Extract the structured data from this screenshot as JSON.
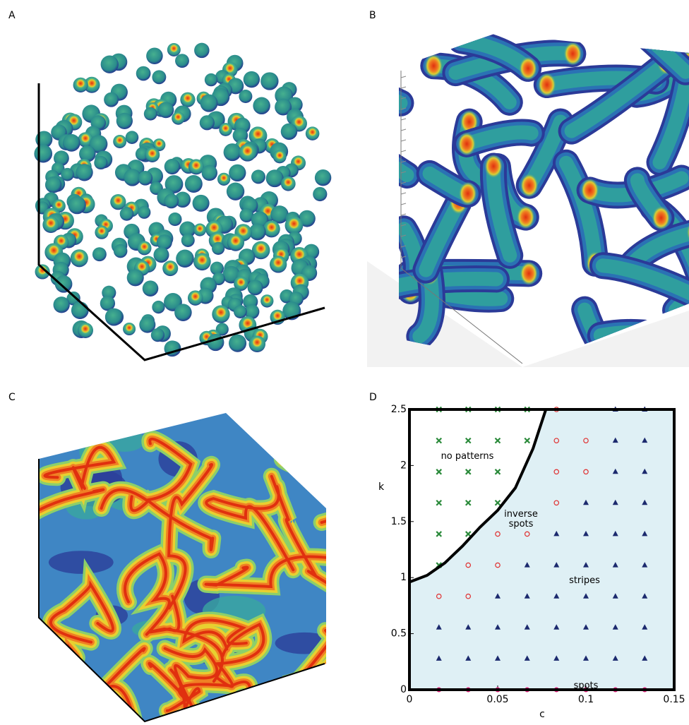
{
  "panel_labels": [
    "A",
    "B",
    "C",
    "D"
  ],
  "chart_data": {
    "type": "scatter",
    "xlabel": "c",
    "ylabel": "k",
    "xlim": [
      0,
      0.15
    ],
    "ylim": [
      0,
      2.5
    ],
    "xticks": [
      0,
      0.05,
      0.1,
      0.15
    ],
    "yticks": [
      0,
      0.5,
      1,
      1.5,
      2,
      2.5
    ],
    "region_color": "#dff0f5",
    "boundary": {
      "color": "#000000",
      "x": [
        0,
        0.01,
        0.02,
        0.03,
        0.04,
        0.05,
        0.06,
        0.07,
        0.0773
      ],
      "values": [
        0.96,
        1.02,
        1.13,
        1.28,
        1.45,
        1.6,
        1.8,
        2.15,
        2.5
      ]
    },
    "series": [
      {
        "name": "no patterns",
        "color": "#2a8a3a",
        "marker": "x",
        "x": [
          0.0167,
          0.0333,
          0.05,
          0.0667,
          0.0167,
          0.0333,
          0.05,
          0.0667,
          0.0167,
          0.0333,
          0.05,
          0.0167,
          0.0333,
          0.05,
          0.0167,
          0.0333,
          0.0167
        ],
        "values": [
          2.5,
          2.5,
          2.5,
          2.5,
          2.222,
          2.222,
          2.222,
          2.222,
          1.944,
          1.944,
          1.944,
          1.667,
          1.667,
          1.667,
          1.389,
          1.389,
          1.111
        ]
      },
      {
        "name": "inverse spots",
        "color": "#e03030",
        "marker": "open-circle",
        "x": [
          0.0833,
          0.0833,
          0.1,
          0.0833,
          0.1,
          0.0833,
          0.05,
          0.0667,
          0.0333,
          0.05,
          0.0167,
          0.0333
        ],
        "values": [
          2.5,
          2.222,
          2.222,
          1.944,
          1.944,
          1.667,
          1.389,
          1.389,
          1.111,
          1.111,
          0.833,
          0.833
        ]
      },
      {
        "name": "stripes",
        "color": "#1c2a6e",
        "marker": "triangle",
        "x": [
          0.1167,
          0.1333,
          0.1167,
          0.1333,
          0.1167,
          0.1333,
          0.1,
          0.1167,
          0.1333,
          0.0833,
          0.1,
          0.1167,
          0.1333,
          0.0667,
          0.0833,
          0.1,
          0.1167,
          0.1333,
          0.05,
          0.0667,
          0.0833,
          0.1,
          0.1167,
          0.1333,
          0.0167,
          0.0333,
          0.05,
          0.0667,
          0.0833,
          0.1,
          0.1167,
          0.1333,
          0.0167,
          0.0333,
          0.05,
          0.0667,
          0.0833,
          0.1,
          0.1167,
          0.1333
        ],
        "values": [
          2.5,
          2.5,
          2.222,
          2.222,
          1.944,
          1.944,
          1.667,
          1.667,
          1.667,
          1.389,
          1.389,
          1.389,
          1.389,
          1.111,
          1.111,
          1.111,
          1.111,
          1.111,
          0.833,
          0.833,
          0.833,
          0.833,
          0.833,
          0.833,
          0.556,
          0.556,
          0.556,
          0.556,
          0.556,
          0.556,
          0.556,
          0.556,
          0.278,
          0.278,
          0.278,
          0.278,
          0.278,
          0.278,
          0.278,
          0.278
        ]
      },
      {
        "name": "spots",
        "color": "#e0207a",
        "marker": "dot",
        "x": [
          0.0167,
          0.0333,
          0.05,
          0.0667,
          0.0833,
          0.1,
          0.1167,
          0.1333
        ],
        "values": [
          0,
          0,
          0,
          0,
          0,
          0,
          0,
          0
        ]
      }
    ]
  }
}
